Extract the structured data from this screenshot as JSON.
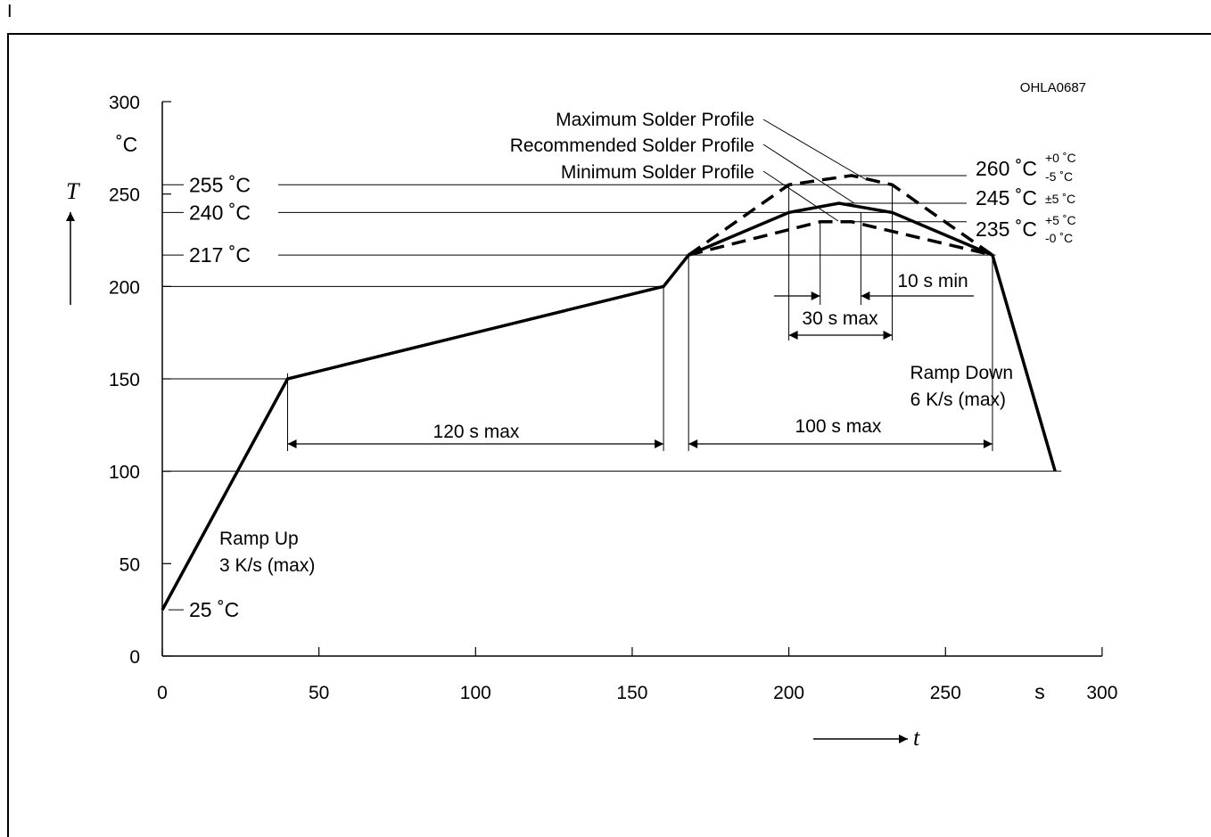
{
  "page": {
    "corner_mark": "I",
    "figure_code": "OHLA0687"
  },
  "chart_data": {
    "type": "line",
    "xlabel": "t",
    "ylabel": "T",
    "x_unit": "s",
    "y_unit": "˚C",
    "xlim": [
      0,
      300
    ],
    "ylim": [
      0,
      300
    ],
    "x_ticks": [
      0,
      50,
      100,
      150,
      200,
      250,
      300
    ],
    "y_ticks": [
      0,
      50,
      100,
      150,
      200,
      250,
      300
    ],
    "grid": false,
    "series": [
      {
        "name": "Recommended Solder Profile",
        "style": "solid",
        "points": [
          [
            0,
            25
          ],
          [
            40,
            150
          ],
          [
            160,
            200
          ],
          [
            168,
            217
          ],
          [
            200,
            240
          ],
          [
            216,
            245
          ],
          [
            233,
            240
          ],
          [
            265,
            217
          ],
          [
            285,
            100
          ]
        ]
      },
      {
        "name": "Maximum Solder Profile",
        "style": "dashed",
        "points": [
          [
            168,
            217
          ],
          [
            200,
            255
          ],
          [
            220,
            260
          ],
          [
            233,
            255
          ],
          [
            265,
            217
          ]
        ]
      },
      {
        "name": "Minimum Solder Profile",
        "style": "dashed",
        "points": [
          [
            168,
            217
          ],
          [
            210,
            235
          ],
          [
            220,
            235
          ],
          [
            265,
            217
          ]
        ]
      }
    ],
    "reference_lines": [
      {
        "value": 255,
        "label": "255 ˚C"
      },
      {
        "value": 240,
        "label": "240 ˚C"
      },
      {
        "value": 217,
        "label": "217 ˚C"
      },
      {
        "value": 200
      },
      {
        "value": 150
      },
      {
        "value": 100
      },
      {
        "value": 25,
        "label": "25 ˚C"
      }
    ],
    "peak_labels": [
      {
        "value": 260,
        "main": "260 ˚C",
        "sup": "+0 ˚C",
        "sub": "-5 ˚C"
      },
      {
        "value": 245,
        "main": "245 ˚C",
        "tol": "±5 ˚C"
      },
      {
        "value": 235,
        "main": "235 ˚C",
        "sup": "+5 ˚C",
        "sub": "-0 ˚C"
      }
    ],
    "annotations": {
      "ramp_up": [
        "Ramp Up",
        "3 K/s (max)"
      ],
      "ramp_down": [
        "Ramp Down",
        "6 K/s (max)"
      ],
      "preheat": "120 s max",
      "above_liquidus": "100 s max",
      "peak_window": "30 s max",
      "peak_dwell": "10 s min"
    }
  }
}
